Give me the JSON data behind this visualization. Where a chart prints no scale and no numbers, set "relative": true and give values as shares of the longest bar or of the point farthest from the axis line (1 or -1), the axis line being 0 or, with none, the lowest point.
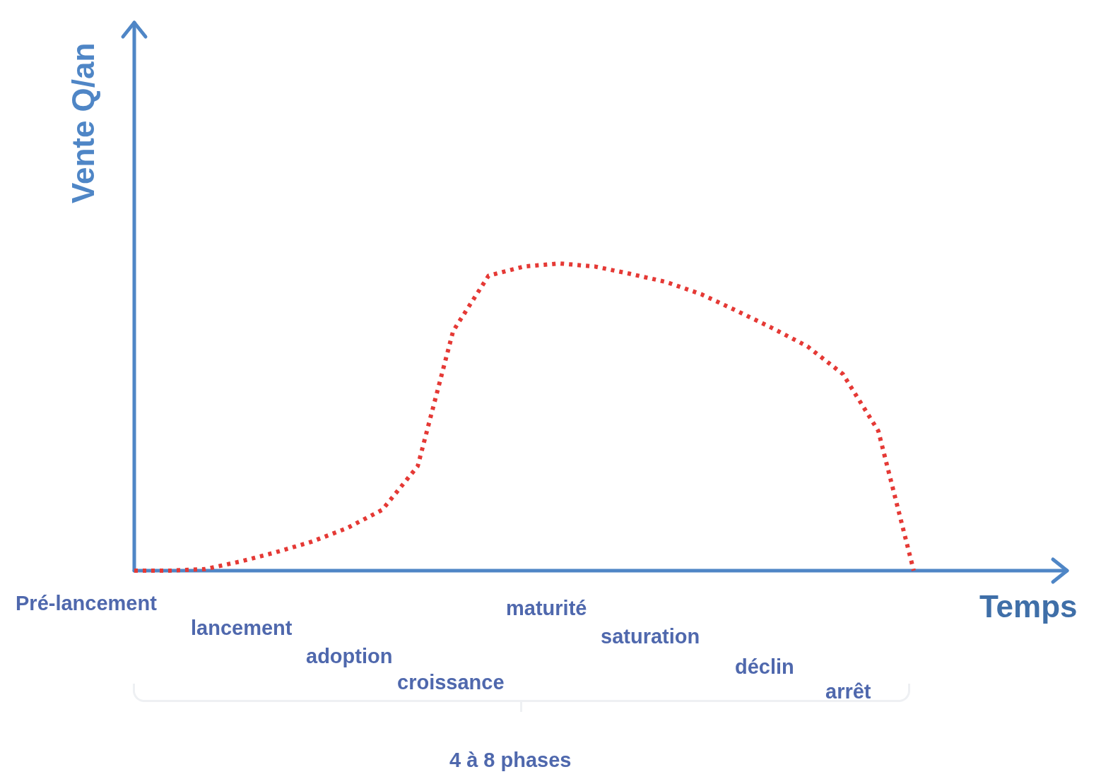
{
  "chart_data": {
    "type": "line",
    "relative": true,
    "ylabel": "Vente Q/an",
    "xlabel": "Temps",
    "categories": [
      null,
      null,
      null,
      null,
      null,
      null,
      null,
      null,
      null,
      null,
      null,
      null,
      null,
      null,
      null,
      null,
      null,
      null,
      null,
      null,
      null,
      null,
      null
    ],
    "series": [
      {
        "color": "#e53935",
        "values": [
          0,
          0,
          0.005,
          0.03,
          0.06,
          0.094,
          0.138,
          0.198,
          0.34,
          0.78,
          0.96,
          0.99,
          1,
          0.99,
          0.966,
          0.94,
          0.9,
          0.846,
          0.79,
          0.73,
          0.64,
          0.455,
          0
        ]
      }
    ],
    "line_style": "dotted",
    "marker": "none",
    "legend": false,
    "annotations": [
      "Pré-lancement",
      "lancement",
      "adoption",
      "croissance",
      "maturité",
      "saturation",
      "déclin",
      "arrêt",
      "4 à 8 phases"
    ]
  }
}
